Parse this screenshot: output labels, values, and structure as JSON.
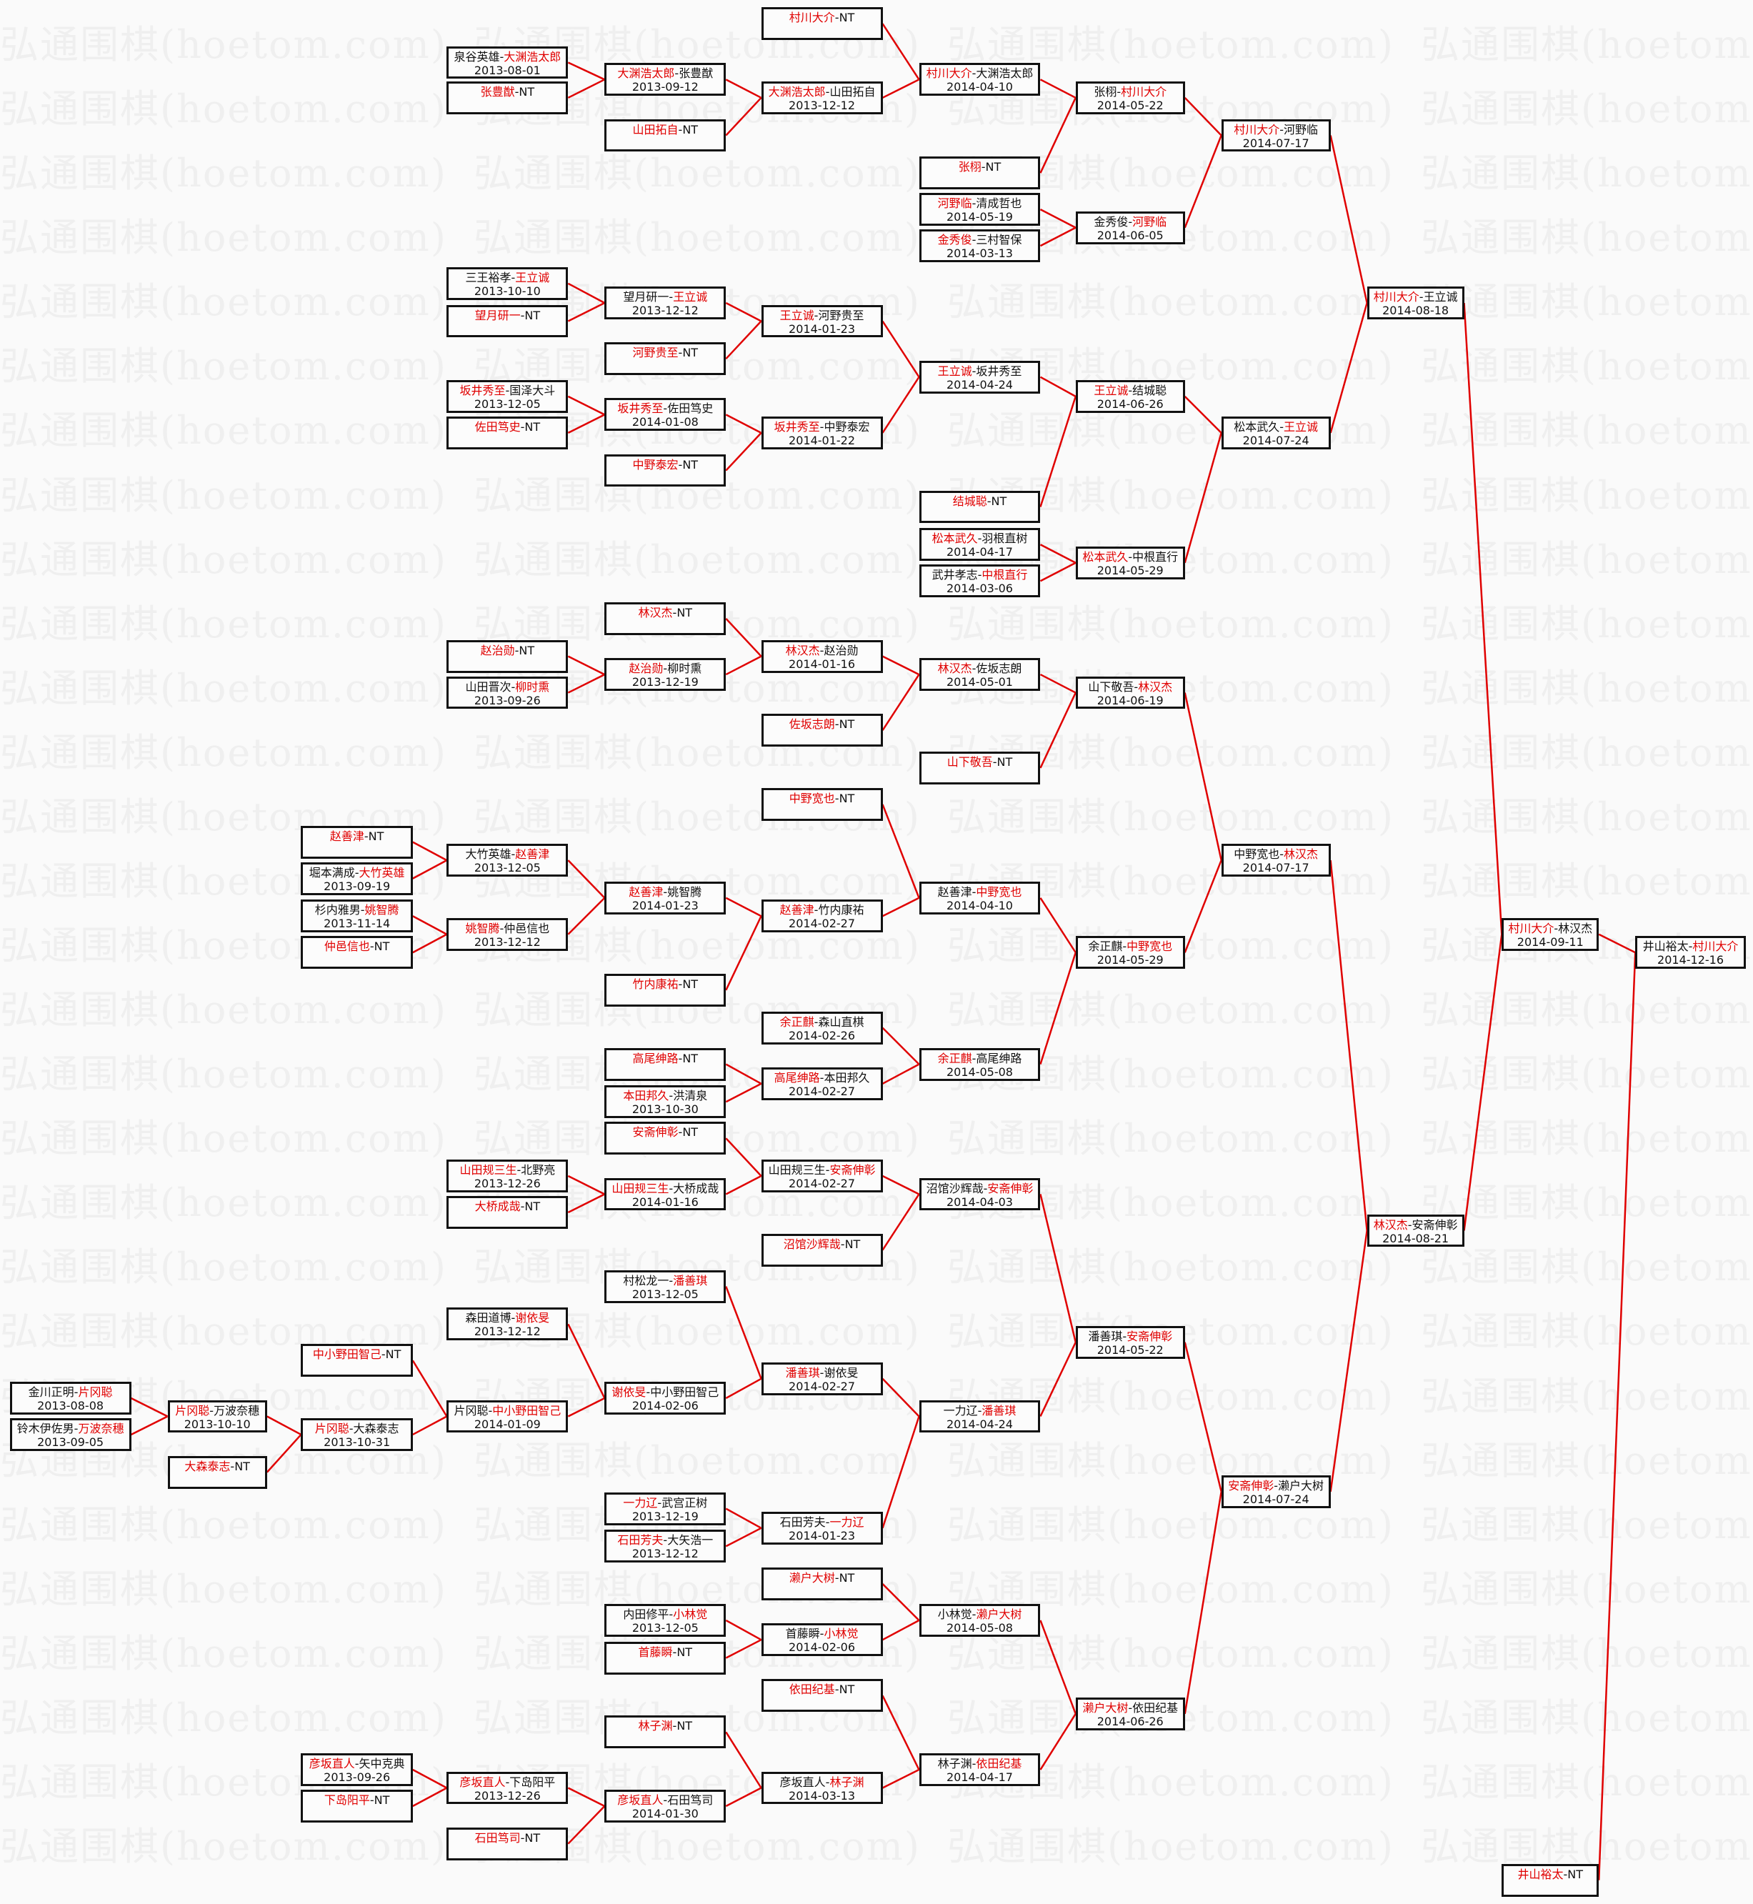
{
  "watermark": "弘通围棋(hoetom.com)",
  "separator": "-",
  "colors": {
    "winner": "#e00000",
    "connector": "#e00000",
    "text": "#111111",
    "border": "#111111"
  },
  "matches": [
    {
      "p1": "泉谷英雄",
      "p2": "大渊浩太郎",
      "winner": 2,
      "date": "2013-08-01"
    },
    {
      "p1": "张豊猷",
      "p2": "NT",
      "winner": 1,
      "date": ""
    },
    {
      "p1": "大渊浩太郎",
      "p2": "张豊猷",
      "winner": 1,
      "date": "2013-09-12"
    },
    {
      "p1": "山田拓自",
      "p2": "NT",
      "winner": 1,
      "date": ""
    },
    {
      "p1": "大渊浩太郎",
      "p2": "山田拓自",
      "winner": 1,
      "date": "2013-12-12"
    },
    {
      "p1": "村川大介",
      "p2": "NT",
      "winner": 1,
      "date": ""
    },
    {
      "p1": "村川大介",
      "p2": "大渊浩太郎",
      "winner": 1,
      "date": "2014-04-10"
    },
    {
      "p1": "张栩",
      "p2": "NT",
      "winner": 1,
      "date": ""
    },
    {
      "p1": "张栩",
      "p2": "村川大介",
      "winner": 2,
      "date": "2014-05-22"
    },
    {
      "p1": "河野临",
      "p2": "清成哲也",
      "winner": 1,
      "date": "2014-05-19"
    },
    {
      "p1": "金秀俊",
      "p2": "三村智保",
      "winner": 1,
      "date": "2014-03-13"
    },
    {
      "p1": "金秀俊",
      "p2": "河野临",
      "winner": 2,
      "date": "2014-06-05"
    },
    {
      "p1": "村川大介",
      "p2": "河野临",
      "winner": 1,
      "date": "2014-07-17"
    },
    {
      "p1": "三王裕孝",
      "p2": "王立诚",
      "winner": 2,
      "date": "2013-10-10"
    },
    {
      "p1": "望月研一",
      "p2": "NT",
      "winner": 1,
      "date": ""
    },
    {
      "p1": "望月研一",
      "p2": "王立诚",
      "winner": 2,
      "date": "2013-12-12"
    },
    {
      "p1": "河野贵至",
      "p2": "NT",
      "winner": 1,
      "date": ""
    },
    {
      "p1": "王立诚",
      "p2": "河野贵至",
      "winner": 1,
      "date": "2014-01-23"
    },
    {
      "p1": "坂井秀至",
      "p2": "国泽大斗",
      "winner": 1,
      "date": "2013-12-05"
    },
    {
      "p1": "佐田笃史",
      "p2": "NT",
      "winner": 1,
      "date": ""
    },
    {
      "p1": "坂井秀至",
      "p2": "佐田笃史",
      "winner": 1,
      "date": "2014-01-08"
    },
    {
      "p1": "中野泰宏",
      "p2": "NT",
      "winner": 1,
      "date": ""
    },
    {
      "p1": "坂井秀至",
      "p2": "中野泰宏",
      "winner": 1,
      "date": "2014-01-22"
    },
    {
      "p1": "王立诚",
      "p2": "坂井秀至",
      "winner": 1,
      "date": "2014-04-24"
    },
    {
      "p1": "结城聪",
      "p2": "NT",
      "winner": 1,
      "date": ""
    },
    {
      "p1": "王立诚",
      "p2": "结城聪",
      "winner": 1,
      "date": "2014-06-26"
    },
    {
      "p1": "松本武久",
      "p2": "羽根直树",
      "winner": 1,
      "date": "2014-04-17"
    },
    {
      "p1": "武井孝志",
      "p2": "中根直行",
      "winner": 2,
      "date": "2014-03-06"
    },
    {
      "p1": "松本武久",
      "p2": "中根直行",
      "winner": 1,
      "date": "2014-05-29"
    },
    {
      "p1": "松本武久",
      "p2": "王立诚",
      "winner": 2,
      "date": "2014-07-24"
    },
    {
      "p1": "村川大介",
      "p2": "王立诚",
      "winner": 1,
      "date": "2014-08-18"
    },
    {
      "p1": "林汉杰",
      "p2": "NT",
      "winner": 1,
      "date": ""
    },
    {
      "p1": "赵治勋",
      "p2": "NT",
      "winner": 1,
      "date": ""
    },
    {
      "p1": "山田晋次",
      "p2": "柳时熏",
      "winner": 2,
      "date": "2013-09-26"
    },
    {
      "p1": "赵治勋",
      "p2": "柳时熏",
      "winner": 1,
      "date": "2013-12-19"
    },
    {
      "p1": "林汉杰",
      "p2": "赵治勋",
      "winner": 1,
      "date": "2014-01-16"
    },
    {
      "p1": "佐坂志朗",
      "p2": "NT",
      "winner": 1,
      "date": ""
    },
    {
      "p1": "林汉杰",
      "p2": "佐坂志朗",
      "winner": 1,
      "date": "2014-05-01"
    },
    {
      "p1": "山下敬吾",
      "p2": "NT",
      "winner": 1,
      "date": ""
    },
    {
      "p1": "山下敬吾",
      "p2": "林汉杰",
      "winner": 2,
      "date": "2014-06-19"
    },
    {
      "p1": "中野宽也",
      "p2": "NT",
      "winner": 1,
      "date": ""
    },
    {
      "p1": "赵善津",
      "p2": "NT",
      "winner": 1,
      "date": ""
    },
    {
      "p1": "堀本满成",
      "p2": "大竹英雄",
      "winner": 2,
      "date": "2013-09-19"
    },
    {
      "p1": "杉内雅男",
      "p2": "姚智腾",
      "winner": 2,
      "date": "2013-11-14"
    },
    {
      "p1": "仲邑信也",
      "p2": "NT",
      "winner": 1,
      "date": ""
    },
    {
      "p1": "大竹英雄",
      "p2": "赵善津",
      "winner": 2,
      "date": "2013-12-05"
    },
    {
      "p1": "姚智腾",
      "p2": "仲邑信也",
      "winner": 1,
      "date": "2013-12-12"
    },
    {
      "p1": "赵善津",
      "p2": "姚智腾",
      "winner": 1,
      "date": "2014-01-23"
    },
    {
      "p1": "竹内康祐",
      "p2": "NT",
      "winner": 1,
      "date": ""
    },
    {
      "p1": "赵善津",
      "p2": "竹内康祐",
      "winner": 1,
      "date": "2014-02-27"
    },
    {
      "p1": "赵善津",
      "p2": "中野宽也",
      "winner": 2,
      "date": "2014-04-10"
    },
    {
      "p1": "余正麒",
      "p2": "森山直棋",
      "winner": 1,
      "date": "2014-02-26"
    },
    {
      "p1": "高尾绅路",
      "p2": "NT",
      "winner": 1,
      "date": ""
    },
    {
      "p1": "本田邦久",
      "p2": "洪清泉",
      "winner": 1,
      "date": "2013-10-30"
    },
    {
      "p1": "高尾绅路",
      "p2": "本田邦久",
      "winner": 1,
      "date": "2014-02-27"
    },
    {
      "p1": "余正麒",
      "p2": "高尾绅路",
      "winner": 1,
      "date": "2014-05-08"
    },
    {
      "p1": "余正麒",
      "p2": "中野宽也",
      "winner": 2,
      "date": "2014-05-29"
    },
    {
      "p1": "中野宽也",
      "p2": "林汉杰",
      "winner": 2,
      "date": "2014-07-17"
    },
    {
      "p1": "安斋伸彰",
      "p2": "NT",
      "winner": 1,
      "date": ""
    },
    {
      "p1": "山田规三生",
      "p2": "北野亮",
      "winner": 1,
      "date": "2013-12-26"
    },
    {
      "p1": "大桥成哉",
      "p2": "NT",
      "winner": 1,
      "date": ""
    },
    {
      "p1": "山田规三生",
      "p2": "大桥成哉",
      "winner": 1,
      "date": "2014-01-16"
    },
    {
      "p1": "山田规三生",
      "p2": "安斋伸彰",
      "winner": 2,
      "date": "2014-02-27"
    },
    {
      "p1": "沼馆沙辉哉",
      "p2": "NT",
      "winner": 1,
      "date": ""
    },
    {
      "p1": "沼馆沙辉哉",
      "p2": "安斋伸彰",
      "winner": 2,
      "date": "2014-04-03"
    },
    {
      "p1": "村松龙一",
      "p2": "潘善琪",
      "winner": 2,
      "date": "2013-12-05"
    },
    {
      "p1": "森田道博",
      "p2": "谢依旻",
      "winner": 2,
      "date": "2013-12-12"
    },
    {
      "p1": "金川正明",
      "p2": "片冈聪",
      "winner": 2,
      "date": "2013-08-08"
    },
    {
      "p1": "铃木伊佐男",
      "p2": "万波奈穗",
      "winner": 2,
      "date": "2013-09-05"
    },
    {
      "p1": "片冈聪",
      "p2": "万波奈穗",
      "winner": 1,
      "date": "2013-10-10"
    },
    {
      "p1": "大森泰志",
      "p2": "NT",
      "winner": 1,
      "date": ""
    },
    {
      "p1": "中小野田智己",
      "p2": "NT",
      "winner": 1,
      "date": ""
    },
    {
      "p1": "片冈聪",
      "p2": "大森泰志",
      "winner": 1,
      "date": "2013-10-31"
    },
    {
      "p1": "片冈聪",
      "p2": "中小野田智己",
      "winner": 2,
      "date": "2014-01-09"
    },
    {
      "p1": "谢依旻",
      "p2": "中小野田智己",
      "winner": 1,
      "date": "2014-02-06"
    },
    {
      "p1": "潘善琪",
      "p2": "谢依旻",
      "winner": 1,
      "date": "2014-02-27"
    },
    {
      "p1": "一力辽",
      "p2": "武宫正树",
      "winner": 1,
      "date": "2013-12-19"
    },
    {
      "p1": "石田芳夫",
      "p2": "大矢浩一",
      "winner": 1,
      "date": "2013-12-12"
    },
    {
      "p1": "石田芳夫",
      "p2": "一力辽",
      "winner": 2,
      "date": "2014-01-23"
    },
    {
      "p1": "一力辽",
      "p2": "潘善琪",
      "winner": 2,
      "date": "2014-04-24"
    },
    {
      "p1": "潘善琪",
      "p2": "安斋伸彰",
      "winner": 2,
      "date": "2014-05-22"
    },
    {
      "p1": "濑户大树",
      "p2": "NT",
      "winner": 1,
      "date": ""
    },
    {
      "p1": "内田修平",
      "p2": "小林觉",
      "winner": 2,
      "date": "2013-12-05"
    },
    {
      "p1": "首藤瞬",
      "p2": "NT",
      "winner": 1,
      "date": ""
    },
    {
      "p1": "首藤瞬",
      "p2": "小林觉",
      "winner": 2,
      "date": "2014-02-06"
    },
    {
      "p1": "小林觉",
      "p2": "濑户大树",
      "winner": 2,
      "date": "2014-05-08"
    },
    {
      "p1": "依田纪基",
      "p2": "NT",
      "winner": 1,
      "date": ""
    },
    {
      "p1": "林子渊",
      "p2": "NT",
      "winner": 1,
      "date": ""
    },
    {
      "p1": "彦坂直人",
      "p2": "矢中克典",
      "winner": 1,
      "date": "2013-09-26"
    },
    {
      "p1": "下岛阳平",
      "p2": "NT",
      "winner": 1,
      "date": ""
    },
    {
      "p1": "彦坂直人",
      "p2": "下岛阳平",
      "winner": 1,
      "date": "2013-12-26"
    },
    {
      "p1": "石田笃司",
      "p2": "NT",
      "winner": 1,
      "date": ""
    },
    {
      "p1": "彦坂直人",
      "p2": "石田笃司",
      "winner": 1,
      "date": "2014-01-30"
    },
    {
      "p1": "彦坂直人",
      "p2": "林子渊",
      "winner": 2,
      "date": "2014-03-13"
    },
    {
      "p1": "林子渊",
      "p2": "依田纪基",
      "winner": 2,
      "date": "2014-04-17"
    },
    {
      "p1": "濑户大树",
      "p2": "依田纪基",
      "winner": 1,
      "date": "2014-06-26"
    },
    {
      "p1": "安斋伸彰",
      "p2": "濑户大树",
      "winner": 1,
      "date": "2014-07-24"
    },
    {
      "p1": "林汉杰",
      "p2": "安斋伸彰",
      "winner": 1,
      "date": "2014-08-21"
    },
    {
      "p1": "村川大介",
      "p2": "林汉杰",
      "winner": 1,
      "date": "2014-09-11"
    },
    {
      "p1": "井山裕太",
      "p2": "NT",
      "winner": 1,
      "date": ""
    },
    {
      "p1": "井山裕太",
      "p2": "村川大介",
      "winner": 2,
      "date": "2014-12-16"
    }
  ]
}
